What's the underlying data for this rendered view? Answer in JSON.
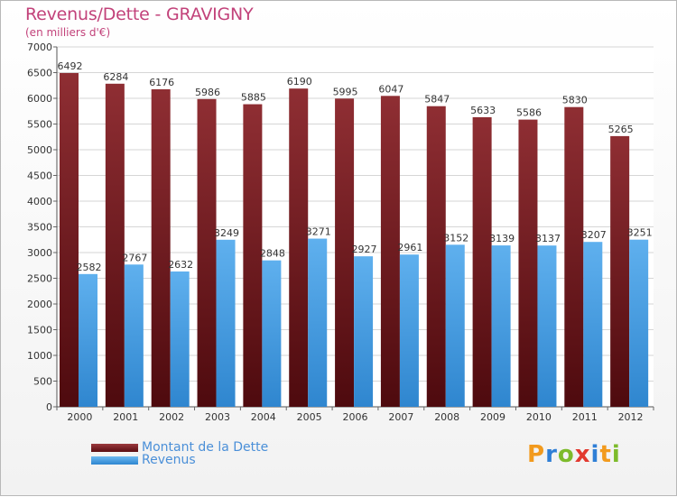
{
  "chart_data": {
    "type": "bar",
    "title": "Revenus/Dette - GRAVIGNY",
    "subtitle": "(en milliers d'€)",
    "xlabel": "",
    "ylabel": "",
    "ylim": [
      0,
      7000
    ],
    "yticks": [
      0,
      500,
      1000,
      1500,
      2000,
      2500,
      3000,
      3500,
      4000,
      4500,
      5000,
      5500,
      6000,
      6500,
      7000
    ],
    "categories": [
      "2000",
      "2001",
      "2002",
      "2003",
      "2004",
      "2005",
      "2006",
      "2007",
      "2008",
      "2009",
      "2010",
      "2011",
      "2012"
    ],
    "series": [
      {
        "name": "Montant de la Dette",
        "color": "#7a1f24",
        "values": [
          6492,
          6284,
          6176,
          5986,
          5885,
          6190,
          5995,
          6047,
          5847,
          5633,
          5586,
          5830,
          5265
        ]
      },
      {
        "name": "Revenus",
        "color": "#4a9ee3",
        "values": [
          2582,
          2767,
          2632,
          3249,
          2848,
          3271,
          2927,
          2961,
          3152,
          3139,
          3137,
          3207,
          3251
        ]
      }
    ],
    "grid": true,
    "legend_position": "bottom-left"
  },
  "logo": {
    "letters": [
      "P",
      "r",
      "o",
      "x",
      "i",
      "t",
      "i"
    ],
    "colors": [
      "#f29a1d",
      "#2f7fd6",
      "#7dbb2b",
      "#e2392f",
      "#2f7fd6",
      "#f29a1d",
      "#7dbb2b"
    ]
  }
}
